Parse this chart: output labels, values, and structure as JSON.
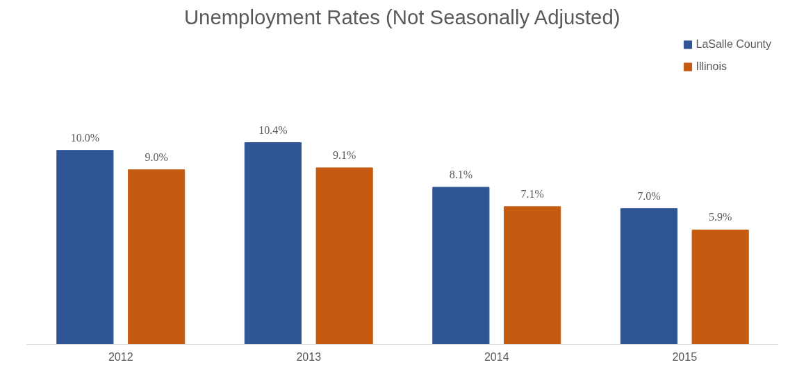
{
  "chart_data": {
    "type": "bar",
    "title": "Unemployment Rates (Not Seasonally Adjusted)",
    "categories": [
      "2012",
      "2013",
      "2014",
      "2015"
    ],
    "series": [
      {
        "name": "LaSalle County",
        "color": "#2f5597",
        "values": [
          10.0,
          10.4,
          8.1,
          7.0
        ],
        "value_labels": [
          "10.0%",
          "10.4%",
          "8.1%",
          "7.0%"
        ]
      },
      {
        "name": "Illinois",
        "color": "#c55a11",
        "values": [
          9.0,
          9.1,
          7.1,
          5.9
        ],
        "value_labels": [
          "9.0%",
          "9.1%",
          "7.1%",
          "5.9%"
        ]
      }
    ],
    "legend": "top right",
    "grid": false,
    "tick_labels": "x"
  }
}
